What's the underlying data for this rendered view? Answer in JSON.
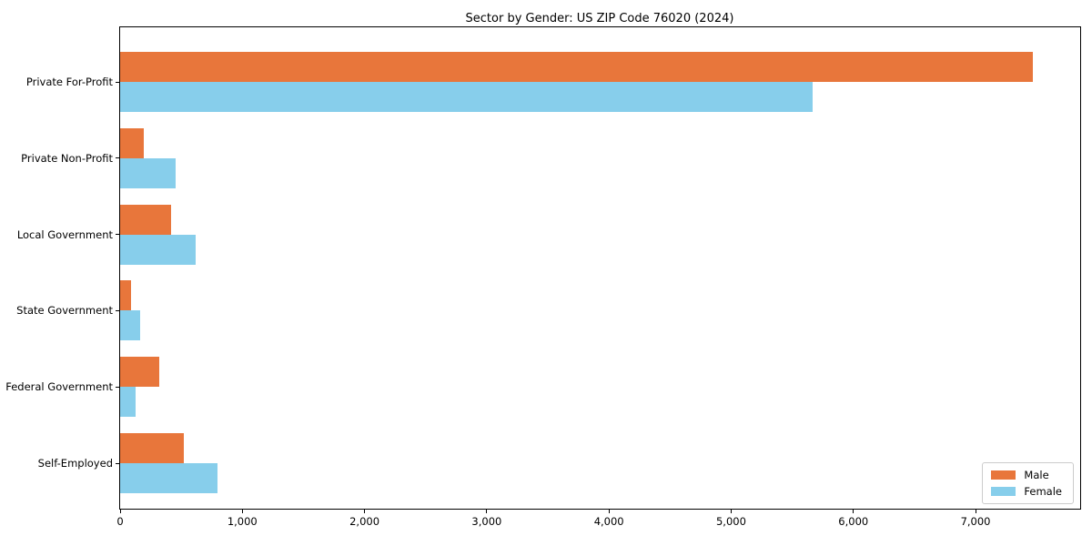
{
  "figure": {
    "title": "Sector by Gender: US ZIP Code 76020 (2024)"
  },
  "chart_data": {
    "type": "bar",
    "orientation": "horizontal",
    "title": "Sector by Gender: US ZIP Code 76020 (2024)",
    "categories": [
      "Private For-Profit",
      "Private Non-Profit",
      "Local Government",
      "State Government",
      "Federal Government",
      "Self-Employed"
    ],
    "series": [
      {
        "name": "Male",
        "color": "#e8763b",
        "values": [
          7470,
          195,
          420,
          90,
          320,
          520
        ]
      },
      {
        "name": "Female",
        "color": "#87ceeb",
        "values": [
          5670,
          455,
          620,
          165,
          125,
          800
        ]
      }
    ],
    "xlabel": "",
    "ylabel": "",
    "xlim": [
      0,
      7856
    ],
    "x_ticks": [
      0,
      1000,
      2000,
      3000,
      4000,
      5000,
      6000,
      7000
    ],
    "x_tick_labels": [
      "0",
      "1,000",
      "2,000",
      "3,000",
      "4,000",
      "5,000",
      "6,000",
      "7,000"
    ],
    "grid": false,
    "legend": {
      "position": "lower right"
    },
    "colors": {
      "male": "#e8763b",
      "female": "#87ceeb",
      "spine": "#000000",
      "legend_border": "#cccccc"
    }
  }
}
